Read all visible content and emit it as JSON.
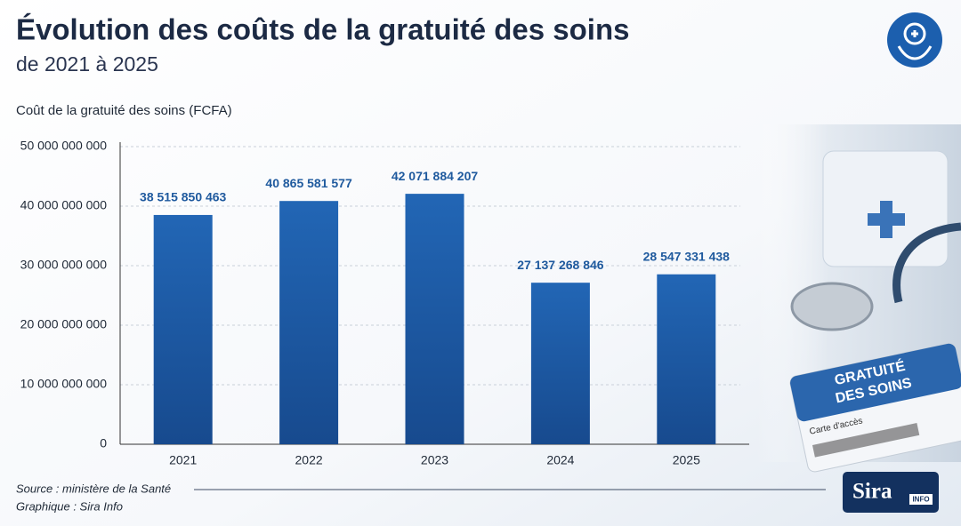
{
  "chart_data": {
    "type": "bar",
    "title": "Évolution des coûts de la gratuité des soins",
    "subtitle": "de 2021 à 2025",
    "y_label": "Coût de la gratuité des soins (FCFA)",
    "categories": [
      "2021",
      "2022",
      "2023",
      "2024",
      "2025"
    ],
    "values": [
      38515850463,
      40865581577,
      42071884207,
      27137268846,
      28547331438
    ],
    "value_labels": [
      "38 515 850 463",
      "40 865 581 577",
      "42 071 884 207",
      "27 137 268 846",
      "28 547 331 438"
    ],
    "color": "#1d5aa6",
    "ylim": [
      0,
      50000000000
    ],
    "yticks": [
      0,
      {
        "value": 10000000000,
        "label": "10 000 000 000"
      },
      {
        "value": 20000000000,
        "label": "20 000 000 000"
      },
      {
        "value": 30000000000,
        "label": "30 000 000 000"
      },
      {
        "value": 40000000000,
        "label": "40 000 000 000"
      },
      {
        "value": 50000000000,
        "label": "50 000 000 000"
      }
    ],
    "grid": true,
    "source": "Source : ministère de la Santé",
    "credit": "Graphique : Sira Info"
  },
  "logo": {
    "name": "Sira",
    "tag": "INFO"
  },
  "illustration": {
    "card_title_1": "GRATUITÉ",
    "card_title_2": "DES SOINS",
    "card_subtitle": "Carte d'accès"
  }
}
